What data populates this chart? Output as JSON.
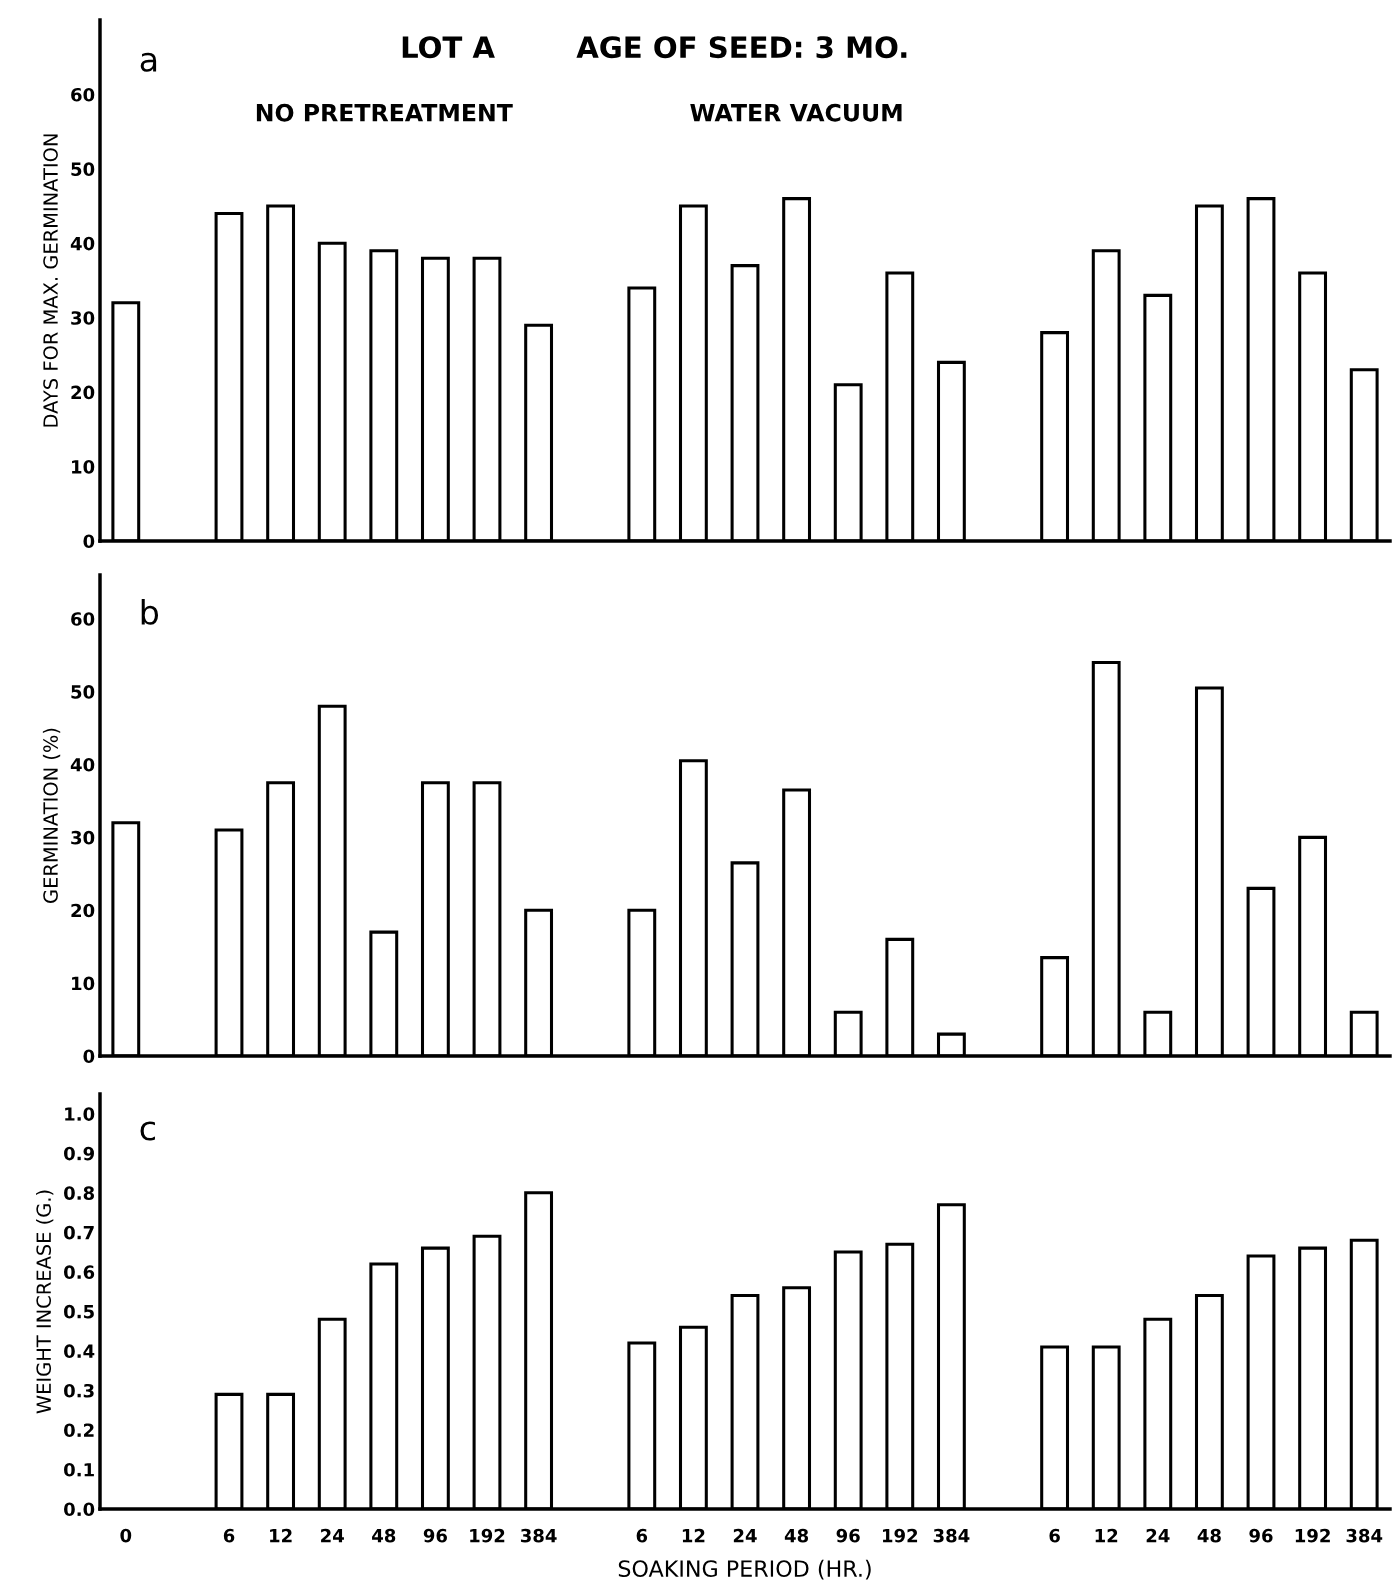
{
  "chart_data": [
    {
      "type": "bar",
      "title": "LOT A        AGE OF SEED: 3 MO.",
      "ylabel": "DAYS FOR MAX. GERMINATION",
      "annotations": [
        "a",
        "NO PRETREATMENT",
        "WATER VACUUM"
      ],
      "categories": [
        "0",
        null,
        "6",
        "12",
        "24",
        "48",
        "96",
        "192",
        "384",
        null,
        "6",
        "12",
        "24",
        "48",
        "96",
        "192",
        "384",
        null,
        "6",
        "12",
        "24",
        "48",
        "96",
        "192",
        "384"
      ],
      "series": [
        {
          "color": "#000000",
          "values": [
            32,
            null,
            44,
            45,
            40,
            39,
            38,
            38,
            29,
            null,
            34,
            45,
            37,
            46,
            21,
            36,
            24,
            null,
            28,
            39,
            33,
            45,
            46,
            36,
            23
          ]
        }
      ],
      "ylim": [
        0,
        70
      ],
      "yticks": [
        0,
        10,
        20,
        30,
        40,
        50,
        60
      ],
      "tick_labels": "y",
      "grid": false,
      "legend": false
    },
    {
      "type": "bar",
      "ylabel": "GERMINATION (%)",
      "annotations": [
        "b"
      ],
      "categories": [
        "0",
        null,
        "6",
        "12",
        "24",
        "48",
        "96",
        "192",
        "384",
        null,
        "6",
        "12",
        "24",
        "48",
        "96",
        "192",
        "384",
        null,
        "6",
        "12",
        "24",
        "48",
        "96",
        "192",
        "384"
      ],
      "series": [
        {
          "color": "#000000",
          "values": [
            32,
            null,
            31,
            37.5,
            48,
            17,
            37.5,
            37.5,
            20,
            null,
            20,
            40.5,
            26.5,
            36.5,
            6,
            16,
            3,
            null,
            13.5,
            54,
            6,
            50.5,
            23,
            30,
            6
          ]
        }
      ],
      "ylim": [
        0,
        66
      ],
      "yticks": [
        0,
        10,
        20,
        30,
        40,
        50,
        60
      ],
      "tick_labels": "y",
      "grid": false,
      "legend": false
    },
    {
      "type": "bar",
      "ylabel": "WEIGHT INCREASE (G.)",
      "xlabel": "SOAKING PERIOD (HR.)",
      "annotations": [
        "c"
      ],
      "categories": [
        "0",
        null,
        "6",
        "12",
        "24",
        "48",
        "96",
        "192",
        "384",
        null,
        "6",
        "12",
        "24",
        "48",
        "96",
        "192",
        "384",
        null,
        "6",
        "12",
        "24",
        "48",
        "96",
        "192",
        "384"
      ],
      "series": [
        {
          "color": "#000000",
          "values": [
            null,
            null,
            0.29,
            0.29,
            0.48,
            0.62,
            0.66,
            0.69,
            0.8,
            null,
            0.42,
            0.46,
            0.54,
            0.56,
            0.65,
            0.67,
            0.77,
            null,
            0.41,
            0.41,
            0.48,
            0.54,
            0.64,
            0.66,
            0.68
          ]
        }
      ],
      "ylim": [
        0,
        1.05
      ],
      "yticks": [
        {
          "value": 0,
          "label": "0.0"
        },
        0.1,
        0.2,
        0.3,
        0.4,
        0.5,
        0.6,
        0.7,
        0.8,
        0.9,
        {
          "value": 1.0,
          "label": "1.0"
        }
      ],
      "grid": false,
      "legend": false
    }
  ]
}
